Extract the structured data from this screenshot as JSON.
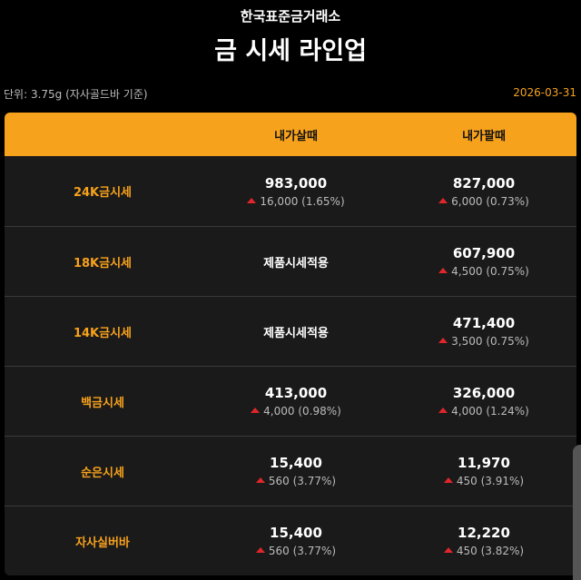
{
  "header": {
    "subtitle": "한국표준금거래소",
    "title": "금 시세 라인업"
  },
  "unit": "단위: 3.75g (자사골드바 기준)",
  "date": "2026-03-31",
  "columns": [
    "",
    "내가살때",
    "내가팔때"
  ],
  "rows": [
    {
      "label": "24K금시세",
      "buy": {
        "price": "983,000",
        "change": "16,000 (1.65%)"
      },
      "sell": {
        "price": "827,000",
        "change": "6,000 (0.73%)"
      }
    },
    {
      "label": "18K금시세",
      "buy": {
        "text": "제품시세적용"
      },
      "sell": {
        "price": "607,900",
        "change": "4,500 (0.75%)"
      }
    },
    {
      "label": "14K금시세",
      "buy": {
        "text": "제품시세적용"
      },
      "sell": {
        "price": "471,400",
        "change": "3,500 (0.75%)"
      }
    },
    {
      "label": "백금시세",
      "buy": {
        "price": "413,000",
        "change": "4,000 (0.98%)"
      },
      "sell": {
        "price": "326,000",
        "change": "4,000 (1.24%)"
      }
    },
    {
      "label": "순은시세",
      "buy": {
        "price": "15,400",
        "change": "560 (3.77%)"
      },
      "sell": {
        "price": "11,970",
        "change": "450 (3.91%)"
      }
    },
    {
      "label": "자사실버바",
      "buy": {
        "price": "15,400",
        "change": "560 (3.77%)"
      },
      "sell": {
        "price": "12,220",
        "change": "450 (3.82%)"
      }
    }
  ],
  "colors": {
    "accent": "#f7a21c",
    "up": "#e0262b"
  }
}
